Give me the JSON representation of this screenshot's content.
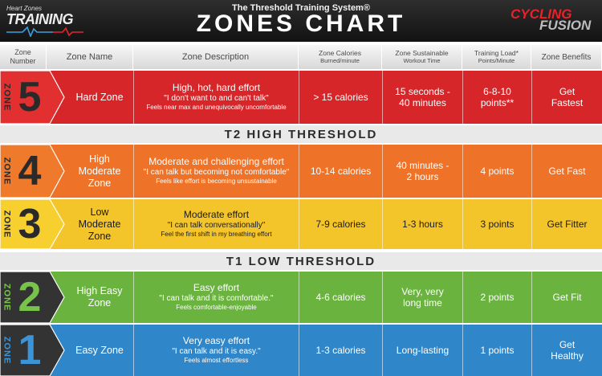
{
  "header": {
    "logo_top": "Heart Zones",
    "logo_main": "TRAINING",
    "subtitle": "The Threshold Training System®",
    "title": "ZONES CHART",
    "brand_line1": "CYCLING",
    "brand_line2": "FUSION"
  },
  "columns": {
    "zone_number": "Zone Number",
    "zone_name": "Zone Name",
    "zone_description": "Zone Description",
    "zone_calories": "Zone Calories",
    "zone_calories_sub": "Burned/minute",
    "zone_sustainable": "Zone Sustainable",
    "zone_sustainable_sub": "Workout Time",
    "training_load": "Training Load*",
    "training_load_sub": "Points/Minute",
    "zone_benefits": "Zone Benefits"
  },
  "bands": {
    "t2": "T2 HIGH THRESHOLD",
    "t1": "T1 LOW THRESHOLD"
  },
  "zones": [
    {
      "word": "ZONE",
      "number": "5",
      "name": "Hard Zone",
      "desc_title": "High, hot, hard effort",
      "desc_quote": "\"I don't want to and can't talk\"",
      "desc_small": "Feels near max and unequivocally uncomfortable",
      "calories": "> 15 calories",
      "time": "15 seconds - 40 minutes",
      "load": "6-8-10 points**",
      "benefit": "Get Fastest",
      "color": "#d7262a",
      "badge_bg": "#e23030",
      "badge_text": "#2a2a2a"
    },
    {
      "word": "ZONE",
      "number": "4",
      "name": "High Moderate Zone",
      "desc_title": "Moderate and challenging effort",
      "desc_quote": "\"I can talk but becoming not comfortable\"",
      "desc_small": "Feels like effort is becoming unsustainable",
      "calories": "10-14 calories",
      "time": "40 minutes - 2 hours",
      "load": "4 points",
      "benefit": "Get Fast",
      "color": "#ee7228",
      "badge_bg": "#f07a2c",
      "badge_text": "#2a2a2a"
    },
    {
      "word": "ZONE",
      "number": "3",
      "name": "Low Moderate Zone",
      "desc_title": "Moderate effort",
      "desc_quote": "\"I can talk conversationally\"",
      "desc_small": "Feel the first shift in my breathing effort",
      "calories": "7-9 calories",
      "time": "1-3 hours",
      "load": "3 points",
      "benefit": "Get Fitter",
      "color": "#f4c52a",
      "badge_bg": "#f7cf2e",
      "badge_text": "#2a2a2a"
    },
    {
      "word": "ZONE",
      "number": "2",
      "name": "High Easy Zone",
      "desc_title": "Easy effort",
      "desc_quote": "\"I can talk and it is comfortable.\"",
      "desc_small": "Feels comfortable-enjoyable",
      "calories": "4-6 calories",
      "time": "Very, very long time",
      "load": "2 points",
      "benefit": "Get Fit",
      "color": "#6ab33f",
      "badge_bg": "#333333",
      "badge_text": "#78c44a"
    },
    {
      "word": "ZONE",
      "number": "1",
      "name": "Easy Zone",
      "desc_title": "Very easy effort",
      "desc_quote": "\"I can talk and it is easy.\"",
      "desc_small": "Feels almost effortless",
      "calories": "1-3 calories",
      "time": "Long-lasting",
      "load": "1 points",
      "benefit": "Get Healthy",
      "color": "#2f86c9",
      "badge_bg": "#333333",
      "badge_text": "#3b94d8"
    }
  ],
  "icons": {
    "heartbeat": "heartbeat-pulse-icon"
  }
}
